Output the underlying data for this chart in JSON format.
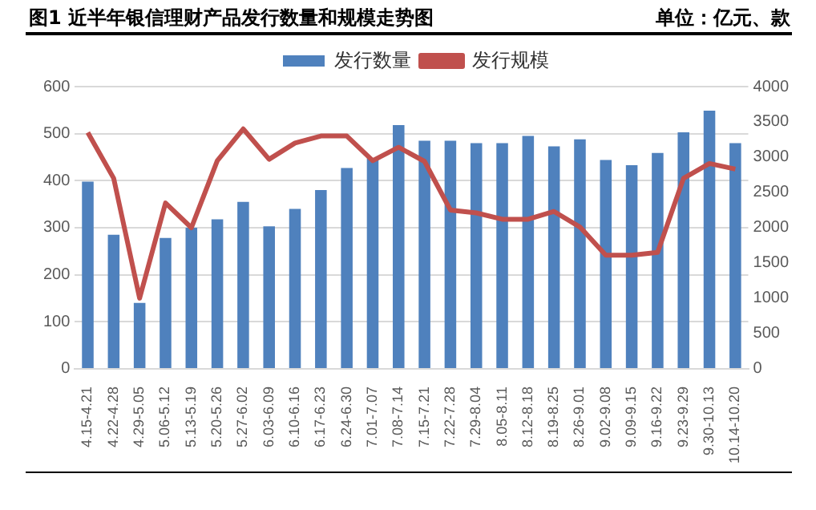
{
  "chart_data": {
    "type": "bar",
    "title": "图1  近半年银信理财产品发行数量和规模走势图",
    "annotations": [
      "单位：亿元、款"
    ],
    "categories": [
      "4.15-4.21",
      "4.22-4.28",
      "4.29-5.05",
      "5.06-5.12",
      "5.13-5.19",
      "5.20-5.26",
      "5.27-6.02",
      "6.03-6.09",
      "6.10-6.16",
      "6.17-6.23",
      "6.24-6.30",
      "7.01-7.07",
      "7.08-7.14",
      "7.15-7.21",
      "7.22-7.28",
      "7.29-8.04",
      "8.05-8.11",
      "8.12-8.18",
      "8.19-8.25",
      "8.26-9.01",
      "9.02-9.08",
      "9.09-9.15",
      "9.16-9.22",
      "9.23-9.29",
      "9.30-10.13",
      "10.14-10.20"
    ],
    "series": [
      {
        "name": "发行数量",
        "color": "#4f81bd",
        "values": [
          398,
          285,
          140,
          278,
          300,
          318,
          355,
          303,
          340,
          380,
          427,
          448,
          518,
          485,
          485,
          480,
          480,
          495,
          473,
          488,
          444,
          433,
          459,
          503,
          549,
          480
        ]
      },
      {
        "name": "发行规模",
        "type": "line",
        "axis": "y2",
        "color": "#c0504d",
        "values": [
          3350,
          2700,
          1000,
          2350,
          2000,
          2950,
          3400,
          2970,
          3200,
          3300,
          3300,
          2950,
          3140,
          2940,
          2250,
          2210,
          2120,
          2120,
          2230,
          2010,
          1610,
          1610,
          1650,
          2700,
          2910,
          2830
        ]
      }
    ],
    "ylim": [
      0,
      600
    ],
    "yticks": [
      0,
      100,
      200,
      300,
      400,
      500,
      600
    ],
    "y2lim": [
      0,
      4000
    ],
    "y2ticks": [
      0,
      500,
      1000,
      1500,
      2000,
      2500,
      3000,
      3500,
      4000
    ],
    "grid": "y",
    "legend": "top",
    "marker": "none"
  }
}
